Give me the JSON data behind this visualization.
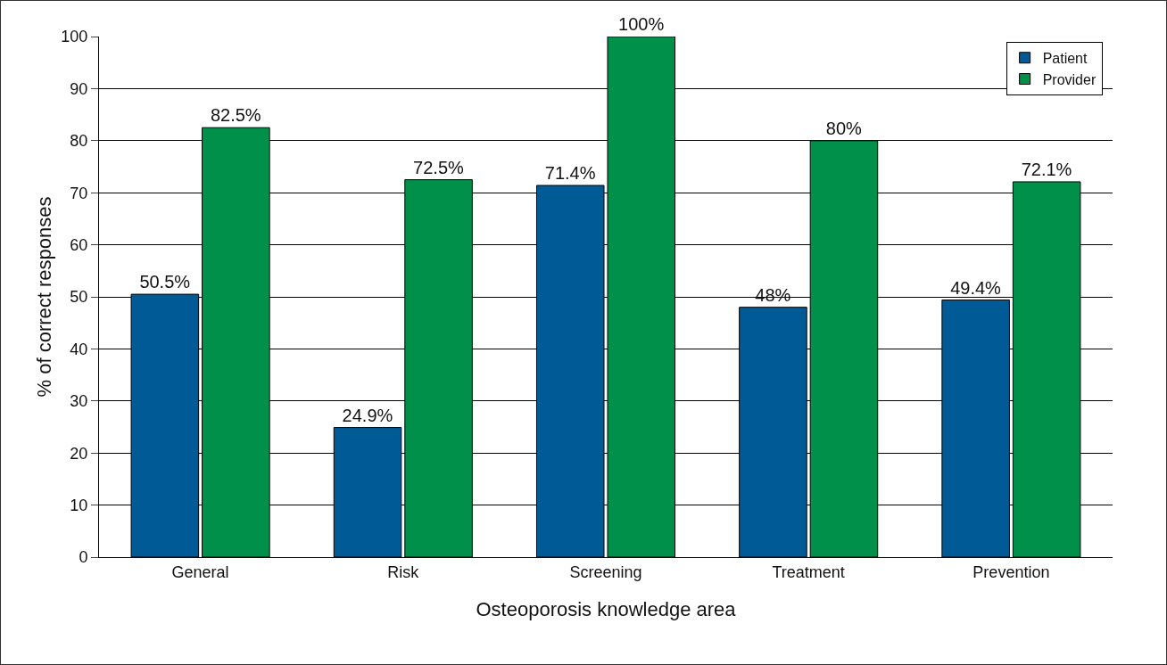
{
  "chart_data": {
    "type": "bar",
    "xlabel": "Osteoporosis knowledge area",
    "ylabel": "% of correct responses",
    "categories": [
      "General",
      "Risk",
      "Screening",
      "Treatment",
      "Prevention"
    ],
    "series": [
      {
        "name": "Patient",
        "color": "#005a96",
        "values": [
          50.5,
          24.9,
          71.4,
          48,
          49.4
        ]
      },
      {
        "name": "Provider",
        "color": "#00904a",
        "values": [
          82.5,
          72.5,
          100,
          80,
          72.1
        ]
      }
    ],
    "value_labels": [
      [
        "50.5%",
        "24.9%",
        "71.4%",
        "48%",
        "49.4%"
      ],
      [
        "82.5%",
        "72.5%",
        "100%",
        "80%",
        "72.1%"
      ]
    ],
    "ylim": [
      0,
      100
    ],
    "yticks": [
      0,
      10,
      20,
      30,
      40,
      50,
      60,
      70,
      80,
      90,
      100
    ],
    "grid": "y",
    "legend": "top right"
  }
}
